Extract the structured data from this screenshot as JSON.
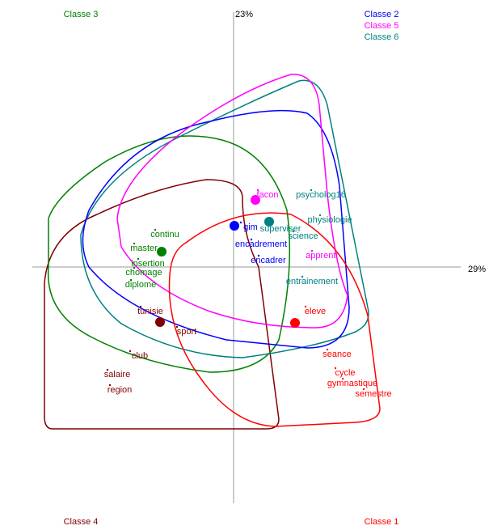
{
  "chart_data": {
    "type": "factor_map",
    "x_label": "29%",
    "y_label": "23%",
    "xlim": [
      -2.89,
      3.16
    ],
    "ylim": [
      -3.25,
      3.3
    ],
    "series": [
      {
        "name": "Classe 1",
        "color": "#ff0000",
        "labels": [
          "eleve",
          "seance",
          "cycle",
          "gymnastique",
          "semestre"
        ],
        "x": [
          1.01,
          1.28,
          1.38,
          1.47,
          1.73
        ],
        "values": [
          -0.55,
          -1.08,
          -1.31,
          -1.44,
          -1.57
        ],
        "centroid": [
          0.76,
          -0.69
        ]
      },
      {
        "name": "Classe 2",
        "color": "#0000ff",
        "labels": [
          "gim",
          "encadrement",
          "encadrer"
        ],
        "x": [
          0.21,
          0.34,
          0.43
        ],
        "values": [
          0.49,
          0.28,
          0.08
        ],
        "centroid": [
          0.01,
          0.51
        ]
      },
      {
        "name": "Classe 3",
        "color": "#008000",
        "labels": [
          "continu",
          "master",
          "insertion",
          "chomage",
          "diplome"
        ],
        "x": [
          -0.85,
          -1.11,
          -1.06,
          -1.11,
          -1.15
        ],
        "values": [
          0.4,
          0.23,
          0.04,
          -0.07,
          -0.22
        ],
        "centroid": [
          -0.89,
          0.19
        ]
      },
      {
        "name": "Classe 4",
        "color": "#800000",
        "labels": [
          "tunisie",
          "sport",
          "club",
          "salaire",
          "region"
        ],
        "x": [
          -1.03,
          -0.58,
          -1.16,
          -1.44,
          -1.41
        ],
        "values": [
          -0.55,
          -0.8,
          -1.1,
          -1.33,
          -1.52
        ],
        "centroid": [
          -0.91,
          -0.68
        ]
      },
      {
        "name": "Classe 5",
        "color": "#ff00ff",
        "labels": [
          "facon",
          "apprenti"
        ],
        "x": [
          0.42,
          1.09
        ],
        "values": [
          0.89,
          0.14
        ],
        "centroid": [
          0.27,
          0.83
        ]
      },
      {
        "name": "Classe 6",
        "color": "#008080",
        "labels": [
          "psycholog16",
          "physiologie",
          "superviser",
          "science",
          "entrainement"
        ],
        "x": [
          1.08,
          1.19,
          0.58,
          0.86,
          0.97
        ],
        "values": [
          0.89,
          0.58,
          0.47,
          0.38,
          -0.18
        ],
        "centroid": [
          0.44,
          0.56
        ]
      }
    ]
  }
}
